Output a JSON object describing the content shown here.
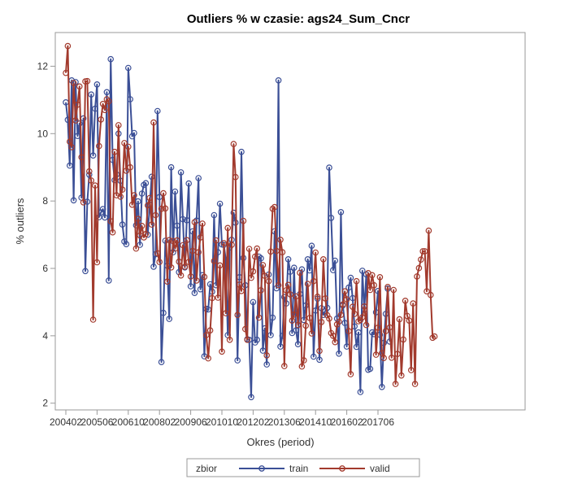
{
  "colors": {
    "train": "#3b4f96",
    "valid": "#a23a2d",
    "frame": "#9a9a9a"
  },
  "chart_data": {
    "type": "line",
    "title": "Outliers % w czasie: ags24_Sum_Cncr",
    "xlabel": "Okres (period)",
    "ylabel": "% outliers",
    "x_tick_labels": [
      "200402",
      "200506",
      "200610",
      "200802",
      "200906",
      "201010",
      "201202",
      "201306",
      "201410",
      "201602",
      "201706"
    ],
    "y_ticks": [
      2,
      4,
      6,
      8,
      10,
      12
    ],
    "ylim": [
      1.8,
      13.0
    ],
    "x_start": "2004-02",
    "x_step_months": 1,
    "legend": {
      "title": "zbior",
      "position": "bottom-center"
    },
    "series": [
      {
        "name": "train",
        "values": [
          10.93,
          10.41,
          9.05,
          11.58,
          8.02,
          11.53,
          9.93,
          10.3,
          8.1,
          10.45,
          5.92,
          7.98,
          8.78,
          11.16,
          9.35,
          10.74,
          11.46,
          7.52,
          7.66,
          7.76,
          7.51,
          11.23,
          5.64,
          12.21,
          9.22,
          8.62,
          8.79,
          10.0,
          8.6,
          7.3,
          6.8,
          6.72,
          11.95,
          11.02,
          9.92,
          10.02,
          7.28,
          7.99,
          6.7,
          8.22,
          8.48,
          8.53,
          7.0,
          7.9,
          8.72,
          6.05,
          6.42,
          10.67,
          8.12,
          3.22,
          4.68,
          6.82,
          6.08,
          4.5,
          9.0,
          6.48,
          8.28,
          7.27,
          5.89,
          8.85,
          7.46,
          6.03,
          7.43,
          8.52,
          5.47,
          7.1,
          5.27,
          7.42,
          8.68,
          5.38,
          5.8,
          3.39,
          4.8,
          4.78,
          5.53,
          5.31,
          7.58,
          5.5,
          6.48,
          7.92,
          6.71,
          6.7,
          6.25,
          4.02,
          6.62,
          6.85,
          7.65,
          7.36,
          3.27,
          5.74,
          9.46,
          6.31,
          5.5,
          3.9,
          3.88,
          2.18,
          5.0,
          3.8,
          3.88,
          6.35,
          6.3,
          3.56,
          4.22,
          3.15,
          5.82,
          4.02,
          4.54,
          7.1,
          5.41,
          11.58,
          3.68,
          4.0,
          5.15,
          4.96,
          6.27,
          5.9,
          4.08,
          6.02,
          4.16,
          3.75,
          5.24,
          5.97,
          4.47,
          4.9,
          6.27,
          5.94,
          6.67,
          3.38,
          4.75,
          5.1,
          3.29,
          4.82,
          4.62,
          4.74,
          4.83,
          8.99,
          7.5,
          5.95,
          6.23,
          4.51,
          3.47,
          7.67,
          4.9,
          4.38,
          3.68,
          5.43,
          5.72,
          5.12,
          4.28,
          3.67,
          4.1,
          2.33,
          5.93,
          4.78,
          5.82,
          2.99,
          3.02,
          4.1,
          4.05,
          4.7,
          5.33,
          4.03,
          2.48,
          3.79,
          4.65,
          5.4,
          3.83
        ]
      },
      {
        "name": "valid",
        "values": [
          11.8,
          12.6,
          9.76,
          9.6,
          11.5,
          10.39,
          10.86,
          11.4,
          9.3,
          7.96,
          11.55,
          11.56,
          8.88,
          8.61,
          4.48,
          8.46,
          6.18,
          9.63,
          10.42,
          10.88,
          10.7,
          11.02,
          10.96,
          7.4,
          7.07,
          9.46,
          8.17,
          10.25,
          8.13,
          8.34,
          9.72,
          8.9,
          9.61,
          9.0,
          7.89,
          8.17,
          6.59,
          7.47,
          6.98,
          7.26,
          6.92,
          7.02,
          7.87,
          8.09,
          7.3,
          10.33,
          7.58,
          6.45,
          6.19,
          7.77,
          8.23,
          7.78,
          5.61,
          6.84,
          6.03,
          6.81,
          6.59,
          6.83,
          6.2,
          5.79,
          6.69,
          6.05,
          6.84,
          6.19,
          5.76,
          6.52,
          7.37,
          5.64,
          6.48,
          6.92,
          7.33,
          5.75,
          4.02,
          3.33,
          4.16,
          5.12,
          6.22,
          6.83,
          5.13,
          6.09,
          3.53,
          6.75,
          4.67,
          7.2,
          3.88,
          6.7,
          9.69,
          8.71,
          4.62,
          5.52,
          5.33,
          7.41,
          4.2,
          3.88,
          6.58,
          5.72,
          5.91,
          6.35,
          6.59,
          4.54,
          5.35,
          6.1,
          5.78,
          3.42,
          5.62,
          6.5,
          7.77,
          7.82,
          6.52,
          5.5,
          6.85,
          6.48,
          3.1,
          5.35,
          5.51,
          5.23,
          4.45,
          4.63,
          5.17,
          4.32,
          5.87,
          3.09,
          3.27,
          4.3,
          5.54,
          4.53,
          4.07,
          5.62,
          6.47,
          5.16,
          3.55,
          4.41,
          6.27,
          5.11,
          4.61,
          4.51,
          4.08,
          4.0,
          3.81,
          4.34,
          4.42,
          4.62,
          4.93,
          5.32,
          5.08,
          4.14,
          2.86,
          4.86,
          4.65,
          5.62,
          4.43,
          4.47,
          4.55,
          4.87,
          4.32,
          5.86,
          5.36,
          5.8,
          5.5,
          3.44,
          4.24,
          5.74,
          3.49,
          3.34,
          4.14,
          5.45,
          4.25,
          3.35,
          5.36,
          2.57,
          3.46,
          4.49,
          2.82,
          3.89,
          5.04,
          4.59,
          4.45,
          2.98,
          4.96,
          2.57,
          5.76,
          6.01,
          6.26,
          6.51,
          6.51,
          5.32,
          7.12,
          5.21,
          3.94,
          3.98
        ]
      }
    ]
  }
}
